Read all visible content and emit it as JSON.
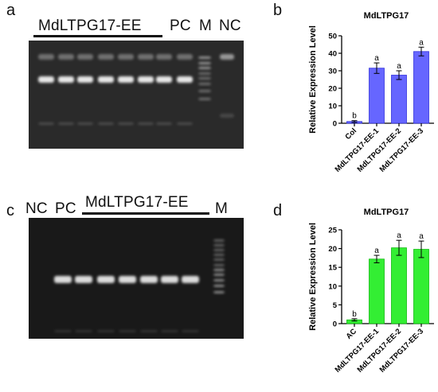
{
  "figure": {
    "panels": {
      "a": {
        "letter": "a",
        "labels": {
          "group": "MdLTPG17-EE",
          "pc": "PC",
          "marker": "M",
          "nc": "NC"
        },
        "gel": {
          "background": "#2a2a2a",
          "band_color": "#f2f2f2"
        }
      },
      "b": {
        "letter": "b"
      },
      "c": {
        "letter": "c",
        "labels": {
          "nc": "NC",
          "pc": "PC",
          "group": "MdLTPG17-EE",
          "marker": "M"
        },
        "gel": {
          "background": "#191919",
          "band_color": "#ececec"
        }
      },
      "d": {
        "letter": "d"
      }
    }
  },
  "chart_data": [
    {
      "type": "bar",
      "panel": "b",
      "title": "MdLTPG17",
      "xlabel": "",
      "ylabel": "Relative Expression Level",
      "categories": [
        "Col",
        "MdLTPG17-EE-1",
        "MdLTPG17-EE-2",
        "MdLTPG17-EE-3"
      ],
      "values": [
        1,
        31.5,
        27.5,
        41
      ],
      "errors": [
        0.5,
        3,
        2.5,
        2.5
      ],
      "significance": [
        "b",
        "a",
        "a",
        "a"
      ],
      "ylim": [
        0,
        50
      ],
      "yticks": [
        0,
        10,
        20,
        30,
        40,
        50
      ],
      "bar_color": "#6666ff",
      "bar_edge": "#3333dd"
    },
    {
      "type": "bar",
      "panel": "d",
      "title": "MdLTPG17",
      "xlabel": "",
      "ylabel": "Relative Expression Level",
      "categories": [
        "AC",
        "MdLTPG17-EE-1",
        "MdLTPG17-EE-2",
        "MdLTPG17-EE-3"
      ],
      "values": [
        1,
        17.2,
        20.2,
        19.8
      ],
      "errors": [
        0.3,
        1,
        2,
        2.2
      ],
      "significance": [
        "b",
        "a",
        "a",
        "a"
      ],
      "ylim": [
        0,
        25
      ],
      "yticks": [
        0,
        5,
        10,
        15,
        20,
        25
      ],
      "bar_color": "#33ee33",
      "bar_edge": "#11bb11"
    }
  ]
}
